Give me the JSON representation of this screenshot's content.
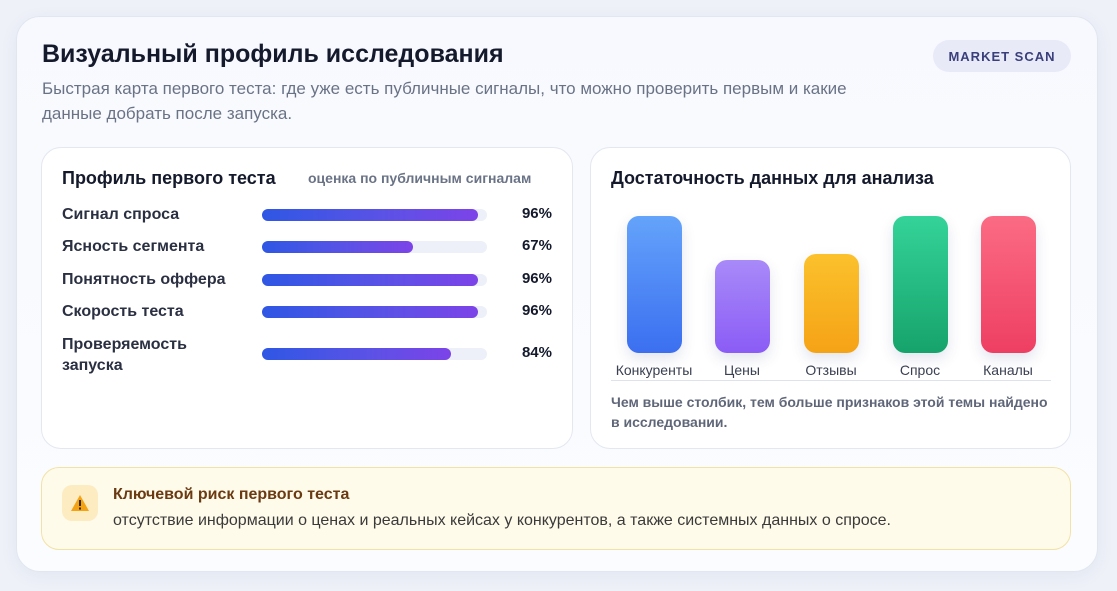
{
  "header": {
    "title": "Визуальный профиль исследования",
    "subtitle": "Быстрая карта первого теста: где уже есть публичные сигналы, что можно проверить первым и какие данные добрать после запуска.",
    "badge": "MARKET SCAN"
  },
  "profile": {
    "title": "Профиль первого теста",
    "note": "оценка по публичным сигналам",
    "fill_color": "#5a52e6",
    "metrics": [
      {
        "label": "Сигнал спроса",
        "value": 96,
        "value_text": "96%"
      },
      {
        "label": "Ясность сегмента",
        "value": 67,
        "value_text": "67%"
      },
      {
        "label": "Понятность оффера",
        "value": 96,
        "value_text": "96%"
      },
      {
        "label": "Скорость теста",
        "value": 96,
        "value_text": "96%"
      },
      {
        "label": "Проверяемость запуска",
        "value": 84,
        "value_text": "84%"
      }
    ]
  },
  "chart_data": {
    "type": "bar",
    "title": "Достаточность данных для анализа",
    "categories": [
      "Конкуренты",
      "Цены",
      "Отзывы",
      "Спрос",
      "Каналы"
    ],
    "values": [
      100,
      68,
      72,
      100,
      100
    ],
    "ylim": [
      0,
      100
    ],
    "colors": [
      "#3b6ff0",
      "#8b5cf6",
      "#f5a316",
      "#16a36b",
      "#ee3f62"
    ],
    "note": "Чем выше столбик, тем больше признаков этой темы найдено в исследовании.",
    "grid": false
  },
  "risk": {
    "icon": "warning-icon",
    "title": "Ключевой риск первого теста",
    "text": "отсутствие информации о ценах и реальных кейсах у конкурентов, а также системных данных о спросе."
  }
}
